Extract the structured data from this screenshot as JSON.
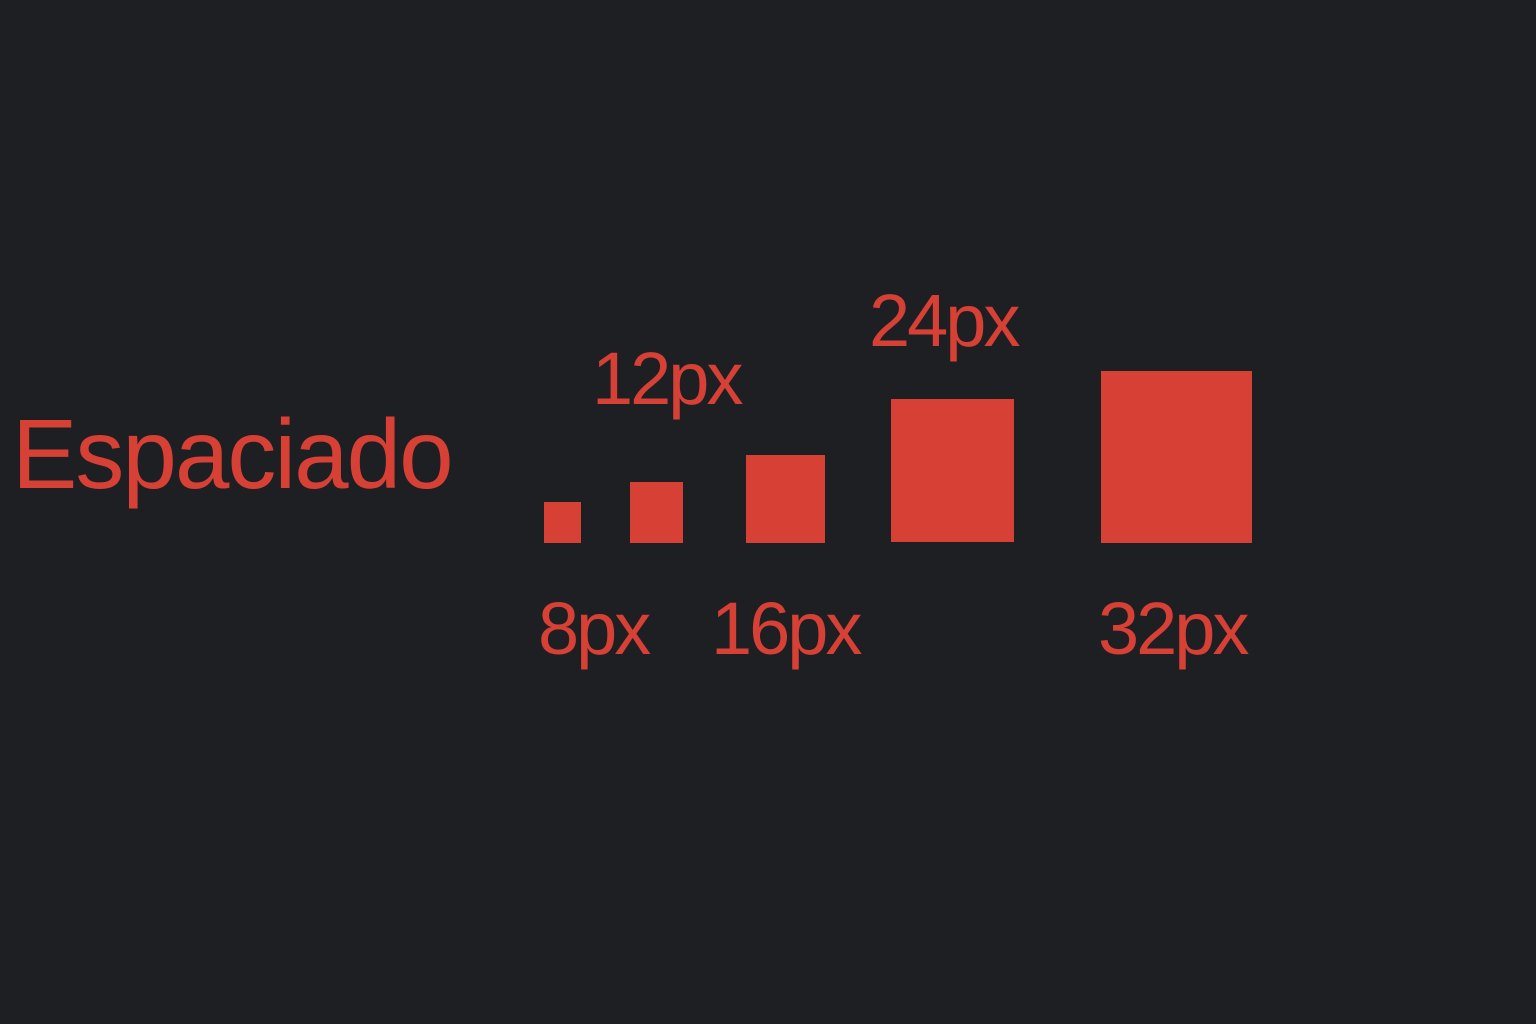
{
  "title": "Espaciado",
  "accent_color": "#d64035",
  "background_color": "#1d1f23",
  "spacing_scale": [
    {
      "label": "8px",
      "value": 8
    },
    {
      "label": "12px",
      "value": 12
    },
    {
      "label": "16px",
      "value": 16
    },
    {
      "label": "24px",
      "value": 24
    },
    {
      "label": "32px",
      "value": 32
    }
  ]
}
